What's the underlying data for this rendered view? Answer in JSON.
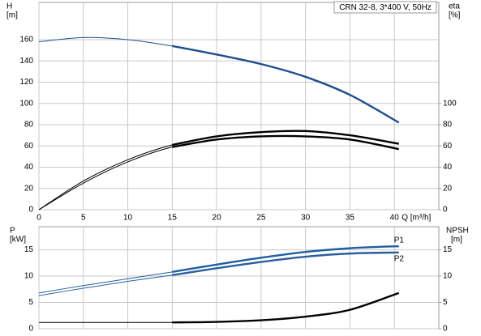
{
  "chart_data": [
    {
      "type": "line",
      "title": "CRN 32-8, 3*400 V, 50Hz",
      "x_label": "Q [m³/h]",
      "y_label": "H",
      "y_unit": "[m]",
      "y2_label": "eta",
      "y2_unit": "[%]",
      "xlim": [
        0,
        45
      ],
      "xticks": [
        0,
        5,
        10,
        15,
        20,
        25,
        30,
        35,
        40
      ],
      "ylim": [
        0,
        195
      ],
      "yticks": [
        0,
        20,
        40,
        60,
        80,
        100,
        120,
        140,
        160
      ],
      "y2lim": [
        0,
        195
      ],
      "y2ticks": [
        0,
        20,
        40,
        60,
        80,
        100
      ],
      "grid": true,
      "series": [
        {
          "color": "#1f4e8c",
          "thick_from": 15,
          "x": [
            0,
            5,
            10,
            15,
            20,
            25,
            30,
            35,
            40.5
          ],
          "values": [
            158,
            162,
            160,
            154,
            146,
            137,
            125,
            108,
            82
          ]
        },
        {
          "color": "#000000",
          "thick_from": 15,
          "axis": "y2",
          "x": [
            0,
            5,
            10,
            15,
            20,
            25,
            30,
            35,
            40.5
          ],
          "values": [
            0,
            27,
            47,
            61,
            69,
            73,
            74,
            70,
            62
          ]
        },
        {
          "color": "#000000",
          "thick_from": 15,
          "axis": "y2",
          "x": [
            0,
            5,
            10,
            15,
            20,
            25,
            30,
            35,
            40.5
          ],
          "values": [
            0,
            25,
            45,
            59,
            66,
            69,
            69,
            66,
            57
          ]
        }
      ]
    },
    {
      "type": "line",
      "y_label": "P",
      "y_unit": "[kW]",
      "y2_label": "NPSH",
      "y2_unit": "[m]",
      "xlim": [
        0,
        45
      ],
      "xticks": [
        0,
        5,
        10,
        15,
        20,
        25,
        30,
        35,
        40
      ],
      "ylim": [
        0,
        19.4
      ],
      "yticks": [
        0,
        5,
        10,
        15
      ],
      "y2lim": [
        0,
        19.4
      ],
      "y2ticks": [
        0,
        5,
        10,
        15
      ],
      "grid": true,
      "series": [
        {
          "name": "P1",
          "color": "#1f5fa0",
          "thick_from": 15,
          "x": [
            0,
            5,
            10,
            15,
            20,
            25,
            30,
            35,
            40.5
          ],
          "values": [
            6.8,
            8.2,
            9.5,
            10.8,
            12.2,
            13.5,
            14.6,
            15.3,
            15.7
          ]
        },
        {
          "name": "P2",
          "color": "#2a5f9e",
          "thick_from": 15,
          "x": [
            0,
            5,
            10,
            15,
            20,
            25,
            30,
            35,
            40.5
          ],
          "values": [
            6.3,
            7.7,
            9,
            10.2,
            11.5,
            12.7,
            13.7,
            14.3,
            14.5
          ]
        },
        {
          "color": "#000000",
          "thick_from": 15,
          "axis": "y2",
          "x": [
            0,
            5,
            10,
            15,
            20,
            25,
            30,
            35,
            40.5
          ],
          "values": [
            1.2,
            1.2,
            1.2,
            1.2,
            1.3,
            1.6,
            2.3,
            3.6,
            6.8
          ]
        }
      ]
    }
  ]
}
